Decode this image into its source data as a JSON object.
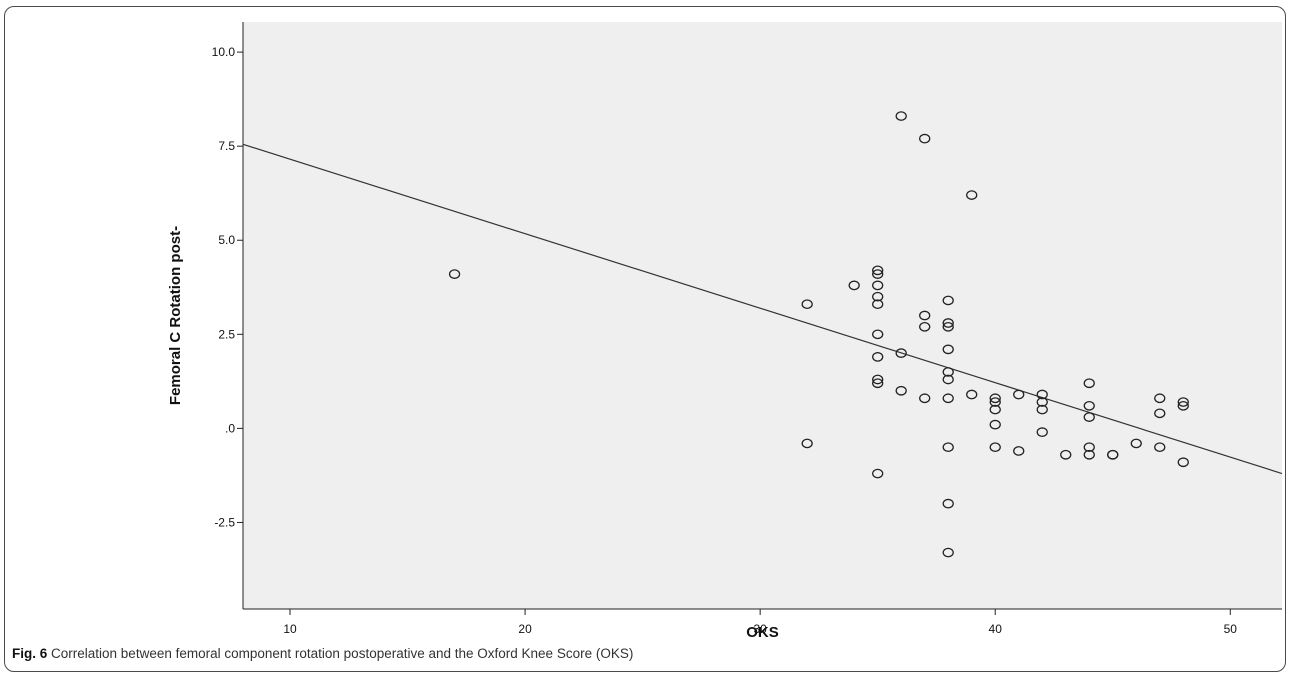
{
  "chart_data": {
    "type": "scatter",
    "title": "",
    "xlabel": "OKS",
    "ylabel": "Femoral C Rotation post-",
    "xlim": [
      8,
      52.2
    ],
    "ylim": [
      -4.8,
      10.8
    ],
    "x_ticks": [
      10,
      20,
      30,
      40,
      50
    ],
    "x_tick_labels": [
      "10",
      "20",
      "30",
      "40",
      "50"
    ],
    "y_ticks": [
      10.0,
      7.5,
      5.0,
      2.5,
      0.0,
      -2.5
    ],
    "y_tick_labels": [
      "10.0",
      "7.5",
      "5.0",
      "2.5",
      ".0",
      "-2.5"
    ],
    "grid": false,
    "background_color": "#efefef",
    "marker": "open-circle",
    "fit_line": {
      "x": [
        8,
        52.2
      ],
      "y": [
        7.55,
        -1.2
      ]
    },
    "series": [
      {
        "points": [
          [
            17,
            4.1
          ],
          [
            32,
            3.3
          ],
          [
            32,
            -0.4
          ],
          [
            34,
            3.8
          ],
          [
            35,
            4.2
          ],
          [
            35,
            4.1
          ],
          [
            35,
            3.8
          ],
          [
            35,
            3.5
          ],
          [
            35,
            3.3
          ],
          [
            35,
            2.5
          ],
          [
            35,
            1.9
          ],
          [
            35,
            1.3
          ],
          [
            35,
            1.2
          ],
          [
            35,
            -1.2
          ],
          [
            36,
            8.3
          ],
          [
            36,
            2.0
          ],
          [
            36,
            1.0
          ],
          [
            37,
            7.7
          ],
          [
            37,
            3.0
          ],
          [
            37,
            2.7
          ],
          [
            37,
            0.8
          ],
          [
            38,
            3.4
          ],
          [
            38,
            2.8
          ],
          [
            38,
            2.7
          ],
          [
            38,
            2.1
          ],
          [
            38,
            1.5
          ],
          [
            38,
            1.3
          ],
          [
            38,
            0.8
          ],
          [
            38,
            -0.5
          ],
          [
            38,
            -2.0
          ],
          [
            38,
            -3.3
          ],
          [
            39,
            6.2
          ],
          [
            39,
            0.9
          ],
          [
            40,
            0.8
          ],
          [
            40,
            0.7
          ],
          [
            40,
            0.5
          ],
          [
            40,
            0.1
          ],
          [
            40,
            -0.5
          ],
          [
            41,
            0.9
          ],
          [
            41,
            -0.6
          ],
          [
            42,
            0.9
          ],
          [
            42,
            0.7
          ],
          [
            42,
            0.5
          ],
          [
            42,
            -0.1
          ],
          [
            43,
            -0.7
          ],
          [
            44,
            1.2
          ],
          [
            44,
            0.6
          ],
          [
            44,
            0.3
          ],
          [
            44,
            -0.5
          ],
          [
            44,
            -0.7
          ],
          [
            45,
            -0.7
          ],
          [
            45,
            -0.7
          ],
          [
            46,
            -0.4
          ],
          [
            47,
            0.8
          ],
          [
            47,
            0.4
          ],
          [
            47,
            -0.5
          ],
          [
            48,
            0.7
          ],
          [
            48,
            0.6
          ],
          [
            48,
            -0.9
          ]
        ]
      }
    ]
  },
  "caption": {
    "label": "Fig. 6",
    "text": " Correlation between femoral component rotation postoperative and the Oxford Knee Score (OKS)"
  }
}
